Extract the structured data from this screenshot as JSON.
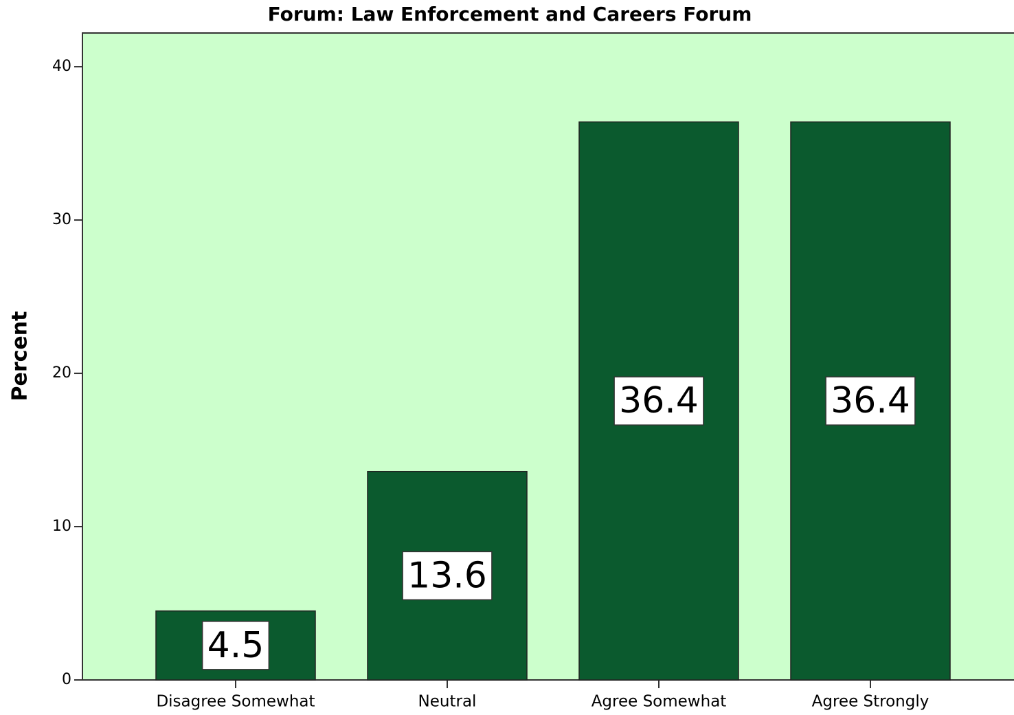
{
  "chart_data": {
    "type": "bar",
    "title": "Forum: Law Enforcement and Careers Forum",
    "y_label": "Percent",
    "categories": [
      "Disagree Somewhat",
      "Neutral",
      "Agree Somewhat",
      "Agree Strongly"
    ],
    "values": [
      4.5,
      13.6,
      36.4,
      36.4
    ],
    "color": "#0b5a2e",
    "background": "#ccffcc",
    "ylim": [
      0,
      42.2
    ],
    "yticks": [
      0,
      10,
      20,
      30,
      40
    ],
    "grid": false
  }
}
